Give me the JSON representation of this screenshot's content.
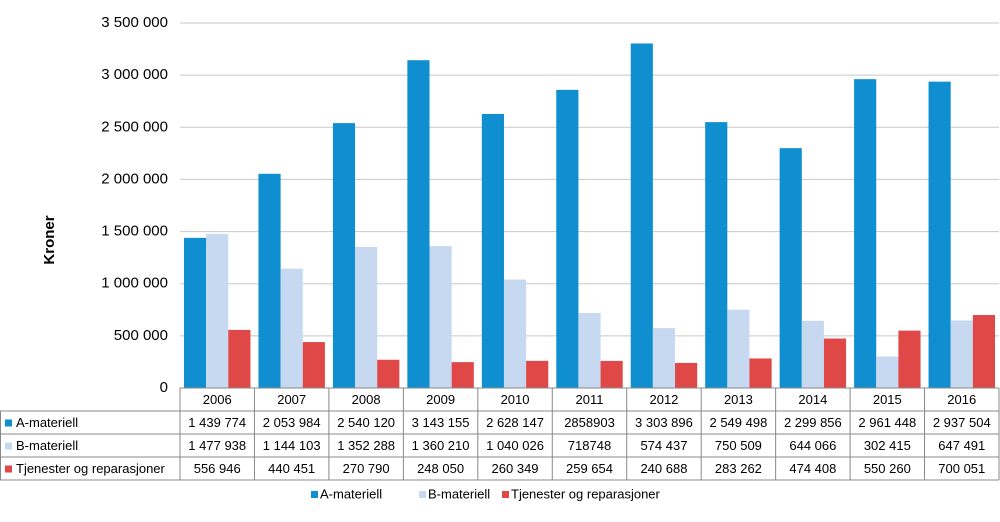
{
  "chart_data": {
    "type": "bar",
    "y_axis_label": "Kroner",
    "categories": [
      "2006",
      "2007",
      "2008",
      "2009",
      "2010",
      "2011",
      "2012",
      "2013",
      "2014",
      "2015",
      "2016"
    ],
    "series": [
      {
        "name": "A-materiell",
        "color": "#0f8fd0",
        "values": [
          1439774,
          2053984,
          2540120,
          3143155,
          2628147,
          2858903,
          3303896,
          2549498,
          2299856,
          2961448,
          2937504
        ],
        "value_labels": [
          "1 439 774",
          "2 053 984",
          "2 540 120",
          "3 143 155",
          "2 628 147",
          "2858903",
          "3 303 896",
          "2 549 498",
          "2 299 856",
          "2 961 448",
          "2 937 504"
        ]
      },
      {
        "name": "B-materiell",
        "color": "#c6d9f1",
        "values": [
          1477938,
          1144103,
          1352288,
          1360210,
          1040026,
          718748,
          574437,
          750509,
          644066,
          302415,
          647491
        ],
        "value_labels": [
          "1 477 938",
          "1 144 103",
          "1 352 288",
          "1 360 210",
          "1 040 026",
          "718748",
          "574 437",
          "750 509",
          "644 066",
          "302 415",
          "647 491"
        ]
      },
      {
        "name": "Tjenester og reparasjoner",
        "color": "#e04848",
        "values": [
          556946,
          440451,
          270790,
          248050,
          260349,
          259654,
          240688,
          283262,
          474408,
          550260,
          700051
        ],
        "value_labels": [
          "556 946",
          "440 451",
          "270 790",
          "248 050",
          "260 349",
          "259 654",
          "240 688",
          "283 262",
          "474 408",
          "550 260",
          "700 051"
        ]
      }
    ],
    "ylim": [
      0,
      3500000
    ],
    "yticks": [
      0,
      {
        "value": 500000,
        "label": "500 000"
      },
      {
        "value": 1000000,
        "label": "1 000 000"
      },
      {
        "value": 1500000,
        "label": "1 500 000"
      },
      {
        "value": 2000000,
        "label": "2 000 000"
      },
      {
        "value": 2500000,
        "label": "2 500 000"
      },
      {
        "value": 3000000,
        "label": "3 000 000"
      },
      {
        "value": 3500000,
        "label": "3 500 000"
      }
    ],
    "grid": true
  }
}
